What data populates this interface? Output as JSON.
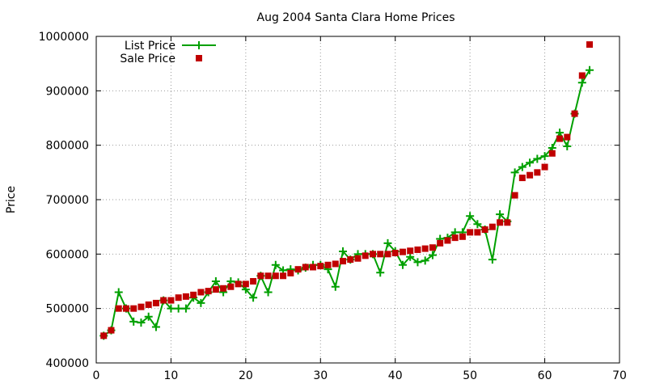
{
  "chart_data": {
    "type": "line",
    "title": "Aug 2004 Santa Clara Home Prices",
    "xlabel": "",
    "ylabel": "Price",
    "xlim": [
      0,
      70
    ],
    "ylim": [
      400000,
      1000000
    ],
    "xticks": [
      0,
      10,
      20,
      30,
      40,
      50,
      60,
      70
    ],
    "yticks": [
      400000,
      500000,
      600000,
      700000,
      800000,
      900000,
      1000000
    ],
    "grid": true,
    "legend_position": "top-left",
    "series": [
      {
        "name": "List Price",
        "style": "linespoints",
        "marker": "plus",
        "color": "#00a000",
        "x": [
          1,
          2,
          3,
          4,
          5,
          6,
          7,
          8,
          9,
          10,
          11,
          12,
          13,
          14,
          15,
          16,
          17,
          18,
          19,
          20,
          21,
          22,
          23,
          24,
          25,
          26,
          27,
          28,
          29,
          30,
          31,
          32,
          33,
          34,
          35,
          36,
          37,
          38,
          39,
          40,
          41,
          42,
          43,
          44,
          45,
          46,
          47,
          48,
          49,
          50,
          51,
          52,
          53,
          54,
          55,
          56,
          57,
          58,
          59,
          60,
          61,
          62,
          63,
          64,
          65,
          66
        ],
        "y": [
          450000,
          460000,
          530000,
          500000,
          476000,
          474000,
          485000,
          466000,
          515000,
          500000,
          500000,
          500000,
          520000,
          510000,
          530000,
          550000,
          530000,
          550000,
          548000,
          535000,
          520000,
          560000,
          530000,
          580000,
          570000,
          572000,
          570000,
          575000,
          580000,
          580000,
          572000,
          540000,
          605000,
          590000,
          600000,
          600000,
          600000,
          566000,
          620000,
          605000,
          580000,
          595000,
          585000,
          588000,
          598000,
          628000,
          630000,
          640000,
          640000,
          670000,
          655000,
          645000,
          590000,
          673000,
          660000,
          750000,
          760000,
          768000,
          775000,
          780000,
          795000,
          823000,
          798000,
          858000,
          915000,
          938000
        ]
      },
      {
        "name": "Sale Price",
        "style": "points",
        "marker": "square",
        "color": "#c00000",
        "x": [
          1,
          2,
          3,
          4,
          5,
          6,
          7,
          8,
          9,
          10,
          11,
          12,
          13,
          14,
          15,
          16,
          17,
          18,
          19,
          20,
          21,
          22,
          23,
          24,
          25,
          26,
          27,
          28,
          29,
          30,
          31,
          32,
          33,
          34,
          35,
          36,
          37,
          38,
          39,
          40,
          41,
          42,
          43,
          44,
          45,
          46,
          47,
          48,
          49,
          50,
          51,
          52,
          53,
          54,
          55,
          56,
          57,
          58,
          59,
          60,
          61,
          62,
          63,
          64,
          65,
          66
        ],
        "y": [
          450000,
          460000,
          500000,
          500000,
          500000,
          503000,
          507000,
          510000,
          515000,
          515000,
          520000,
          522000,
          525000,
          530000,
          532000,
          535000,
          537000,
          540000,
          545000,
          545000,
          550000,
          560000,
          560000,
          560000,
          560000,
          565000,
          572000,
          576000,
          576000,
          578000,
          580000,
          582000,
          587000,
          590000,
          592000,
          597000,
          600000,
          600000,
          600000,
          602000,
          604000,
          606000,
          608000,
          610000,
          612000,
          620000,
          625000,
          630000,
          632000,
          640000,
          640000,
          645000,
          650000,
          658000,
          658000,
          708000,
          740000,
          745000,
          750000,
          760000,
          785000,
          812000,
          815000,
          858000,
          928000,
          985000
        ]
      }
    ]
  }
}
